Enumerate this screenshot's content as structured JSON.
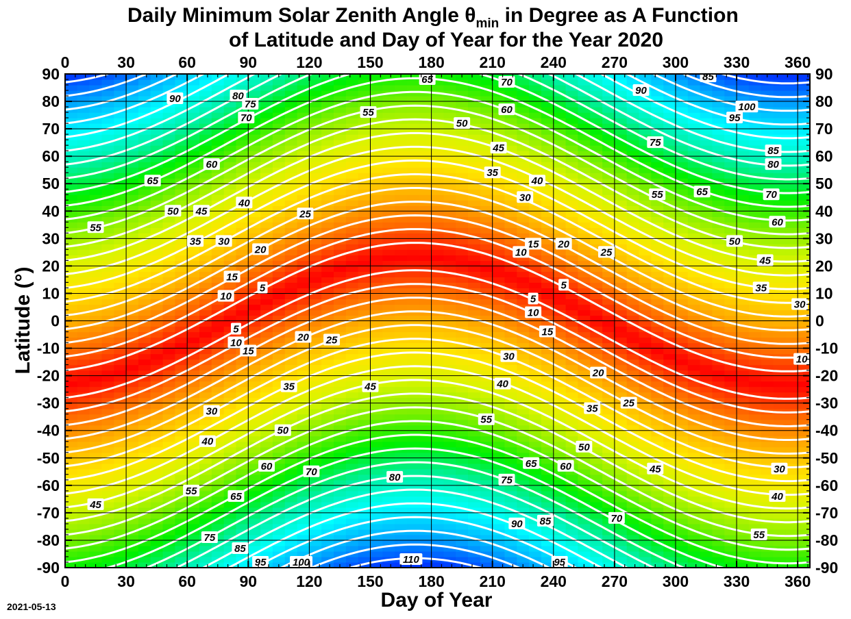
{
  "chart_data": {
    "type": "heatmap",
    "title_line1": "Daily Minimum Solar Zenith Angle θ",
    "title_subscript": "min",
    "title_line1_rest": "  in Degree as A Function",
    "title_line2": "of Latitude and Day of Year for the Year 2020",
    "xlabel": "Day of Year",
    "ylabel": "Latitude (°)",
    "xlim": [
      0,
      366
    ],
    "ylim": [
      -90,
      90
    ],
    "x_ticks": [
      0,
      30,
      60,
      90,
      120,
      150,
      180,
      210,
      240,
      270,
      300,
      330,
      360
    ],
    "y_ticks": [
      90,
      80,
      70,
      60,
      50,
      40,
      30,
      20,
      10,
      0,
      -10,
      -20,
      -30,
      -40,
      -50,
      -60,
      -70,
      -80,
      -90
    ],
    "contour_interval": 5,
    "contour_levels": [
      5,
      10,
      15,
      20,
      25,
      30,
      35,
      40,
      45,
      50,
      55,
      60,
      65,
      70,
      75,
      80,
      85,
      90,
      95,
      100,
      105,
      110
    ],
    "color_range": [
      0,
      113
    ],
    "colormap": [
      "#ff0000",
      "#ff6600",
      "#ffb000",
      "#ffe600",
      "#d8f500",
      "#80f000",
      "#00f000",
      "#00f0a0",
      "#00ffff",
      "#00aaff",
      "#0030ff"
    ],
    "subsolar_latitude_max": 23.44,
    "solstice_day": 172,
    "contour_labels": [
      {
        "text": "90",
        "day": 54,
        "lat": 81
      },
      {
        "text": "80",
        "day": 85,
        "lat": 82
      },
      {
        "text": "75",
        "day": 91,
        "lat": 79
      },
      {
        "text": "70",
        "day": 89,
        "lat": 74
      },
      {
        "text": "65",
        "day": 43,
        "lat": 51
      },
      {
        "text": "60",
        "day": 72,
        "lat": 57
      },
      {
        "text": "55",
        "day": 15,
        "lat": 34
      },
      {
        "text": "50",
        "day": 53,
        "lat": 40
      },
      {
        "text": "45",
        "day": 67,
        "lat": 40
      },
      {
        "text": "40",
        "day": 88,
        "lat": 43
      },
      {
        "text": "35",
        "day": 64,
        "lat": 29
      },
      {
        "text": "30",
        "day": 78,
        "lat": 29
      },
      {
        "text": "25",
        "day": 118,
        "lat": 39
      },
      {
        "text": "20",
        "day": 96,
        "lat": 26
      },
      {
        "text": "15",
        "day": 82,
        "lat": 16
      },
      {
        "text": "10",
        "day": 79,
        "lat": 9
      },
      {
        "text": "5",
        "day": 97,
        "lat": 12
      },
      {
        "text": "5",
        "day": 84,
        "lat": -3
      },
      {
        "text": "10",
        "day": 84,
        "lat": -8
      },
      {
        "text": "15",
        "day": 90,
        "lat": -11
      },
      {
        "text": "20",
        "day": 117,
        "lat": -6
      },
      {
        "text": "25",
        "day": 131,
        "lat": -7
      },
      {
        "text": "35",
        "day": 110,
        "lat": -24
      },
      {
        "text": "45",
        "day": 150,
        "lat": -24
      },
      {
        "text": "30",
        "day": 72,
        "lat": -33
      },
      {
        "text": "40",
        "day": 70,
        "lat": -44
      },
      {
        "text": "50",
        "day": 107,
        "lat": -40
      },
      {
        "text": "60",
        "day": 99,
        "lat": -53
      },
      {
        "text": "55",
        "day": 62,
        "lat": -62
      },
      {
        "text": "65",
        "day": 84,
        "lat": -64
      },
      {
        "text": "70",
        "day": 121,
        "lat": -55
      },
      {
        "text": "80",
        "day": 162,
        "lat": -57
      },
      {
        "text": "45",
        "day": 15,
        "lat": -67
      },
      {
        "text": "75",
        "day": 71,
        "lat": -79
      },
      {
        "text": "85",
        "day": 86,
        "lat": -83
      },
      {
        "text": "95",
        "day": 96,
        "lat": -88
      },
      {
        "text": "100",
        "day": 116,
        "lat": -88
      },
      {
        "text": "110",
        "day": 170,
        "lat": -87
      },
      {
        "text": "65",
        "day": 178,
        "lat": 88
      },
      {
        "text": "70",
        "day": 217,
        "lat": 87
      },
      {
        "text": "60",
        "day": 217,
        "lat": 77
      },
      {
        "text": "55",
        "day": 149,
        "lat": 76
      },
      {
        "text": "50",
        "day": 195,
        "lat": 72
      },
      {
        "text": "45",
        "day": 213,
        "lat": 63
      },
      {
        "text": "35",
        "day": 210,
        "lat": 54
      },
      {
        "text": "40",
        "day": 232,
        "lat": 51
      },
      {
        "text": "30",
        "day": 226,
        "lat": 45
      },
      {
        "text": "15",
        "day": 230,
        "lat": 28
      },
      {
        "text": "10",
        "day": 224,
        "lat": 25
      },
      {
        "text": "20",
        "day": 245,
        "lat": 28
      },
      {
        "text": "25",
        "day": 266,
        "lat": 25
      },
      {
        "text": "5",
        "day": 245,
        "lat": 13
      },
      {
        "text": "5",
        "day": 230,
        "lat": 8
      },
      {
        "text": "10",
        "day": 230,
        "lat": 3
      },
      {
        "text": "15",
        "day": 237,
        "lat": -4
      },
      {
        "text": "30",
        "day": 218,
        "lat": -13
      },
      {
        "text": "20",
        "day": 262,
        "lat": -19
      },
      {
        "text": "40",
        "day": 215,
        "lat": -23
      },
      {
        "text": "25",
        "day": 277,
        "lat": -30
      },
      {
        "text": "35",
        "day": 259,
        "lat": -32
      },
      {
        "text": "55",
        "day": 207,
        "lat": -36
      },
      {
        "text": "50",
        "day": 255,
        "lat": -46
      },
      {
        "text": "65",
        "day": 229,
        "lat": -52
      },
      {
        "text": "60",
        "day": 246,
        "lat": -53
      },
      {
        "text": "45",
        "day": 290,
        "lat": -54
      },
      {
        "text": "75",
        "day": 217,
        "lat": -58
      },
      {
        "text": "70",
        "day": 271,
        "lat": -72
      },
      {
        "text": "90",
        "day": 222,
        "lat": -74
      },
      {
        "text": "85",
        "day": 236,
        "lat": -73
      },
      {
        "text": "95",
        "day": 243,
        "lat": -88
      },
      {
        "text": "90",
        "day": 283,
        "lat": 84
      },
      {
        "text": "85",
        "day": 316,
        "lat": 89
      },
      {
        "text": "100",
        "day": 335,
        "lat": 78
      },
      {
        "text": "95",
        "day": 329,
        "lat": 74
      },
      {
        "text": "75",
        "day": 290,
        "lat": 65
      },
      {
        "text": "85",
        "day": 348,
        "lat": 62
      },
      {
        "text": "80",
        "day": 348,
        "lat": 57
      },
      {
        "text": "65",
        "day": 313,
        "lat": 47
      },
      {
        "text": "70",
        "day": 347,
        "lat": 46
      },
      {
        "text": "55",
        "day": 291,
        "lat": 46
      },
      {
        "text": "60",
        "day": 350,
        "lat": 36
      },
      {
        "text": "50",
        "day": 329,
        "lat": 29
      },
      {
        "text": "45",
        "day": 344,
        "lat": 22
      },
      {
        "text": "35",
        "day": 342,
        "lat": 12
      },
      {
        "text": "30",
        "day": 361,
        "lat": 6
      },
      {
        "text": "10",
        "day": 362,
        "lat": -14
      },
      {
        "text": "30",
        "day": 351,
        "lat": -54
      },
      {
        "text": "40",
        "day": 350,
        "lat": -64
      },
      {
        "text": "55",
        "day": 341,
        "lat": -78
      }
    ]
  },
  "footer": {
    "date_stamp": "2021-05-13"
  }
}
